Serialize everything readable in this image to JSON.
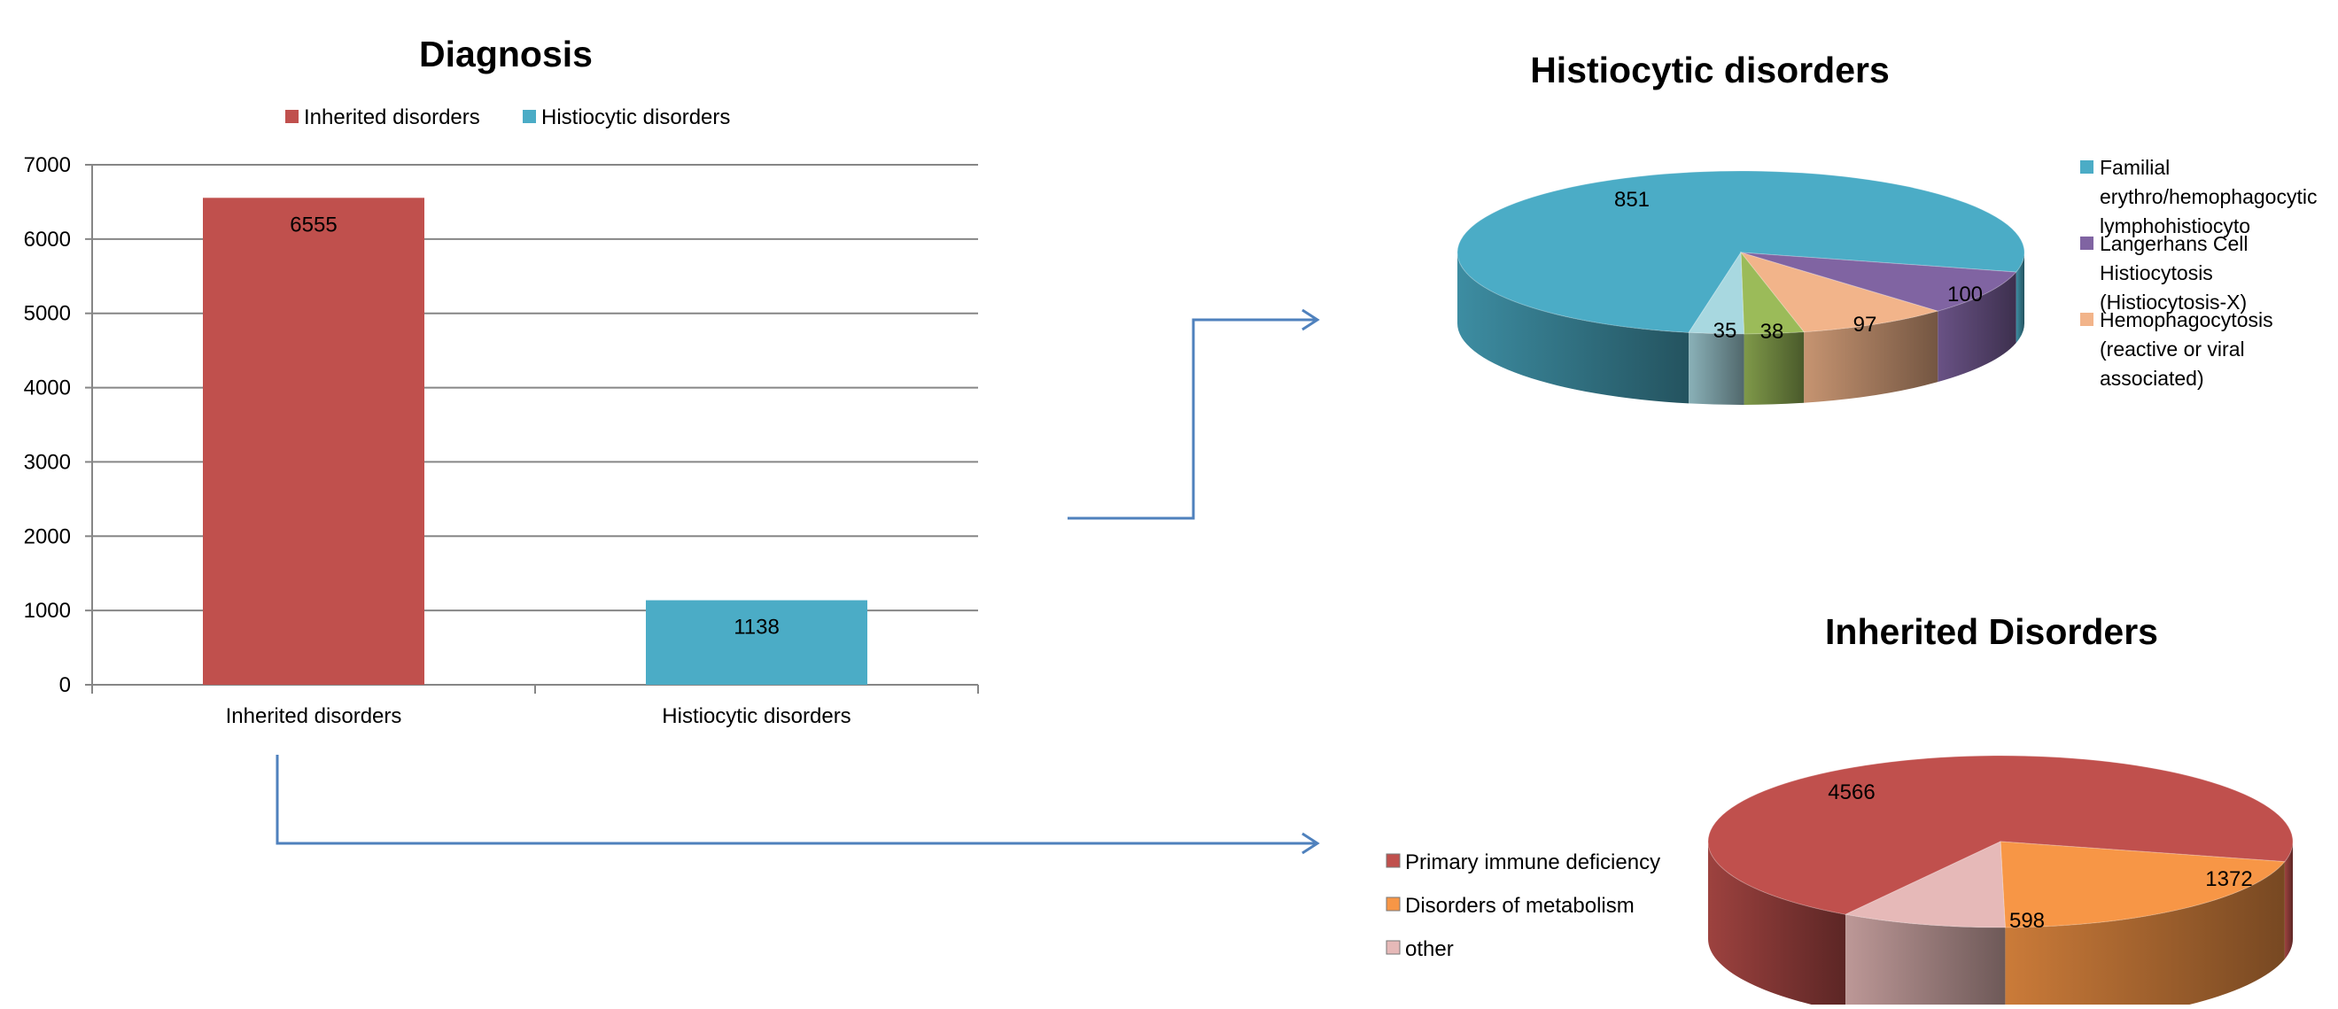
{
  "chart_data": [
    {
      "type": "bar",
      "title": "Diagnosis",
      "categories": [
        "Inherited disorders",
        "Histiocytic disorders"
      ],
      "values": [
        6555,
        1138
      ],
      "series": [
        {
          "name": "Inherited disorders",
          "color": "#C0504D"
        },
        {
          "name": "Histiocytic disorders",
          "color": "#4BACC6"
        }
      ],
      "yticks": [
        0,
        1000,
        2000,
        3000,
        4000,
        5000,
        6000,
        7000
      ],
      "ylim": [
        0,
        7000
      ],
      "grid": true,
      "legend": "top",
      "data_labels": true
    },
    {
      "type": "pie",
      "title": "Histiocytic disorders",
      "legend": "right",
      "slices": [
        {
          "label": "Familial erythro/hemophagocytic lymphohistiocyto",
          "value": 851,
          "color": "#4BACC6"
        },
        {
          "label": "Langerhans Cell Histiocytosis (Histiocytosis-X)",
          "value": 100,
          "color": "#8064A2"
        },
        {
          "label": "Hemophagocytosis (reactive or viral associated)",
          "value": 97,
          "color": "#F2B48A"
        },
        {
          "value": 38,
          "color": "#9BBB59"
        },
        {
          "value": 35,
          "color": "#A8D8E0"
        }
      ],
      "legend_lines": [
        [
          "Familial",
          "erythro/hemophagocytic",
          "lymphohistiocyto"
        ],
        [
          "Langerhans Cell",
          "Histiocytosis",
          "(Histiocytosis-X)"
        ],
        [
          "Hemophagocytosis",
          "(reactive or viral",
          "associated)"
        ]
      ]
    },
    {
      "type": "pie",
      "title": "Inherited Disorders",
      "legend": "left",
      "slices": [
        {
          "label": "Primary immune deficiency",
          "value": 4566,
          "color": "#C0504D"
        },
        {
          "label": "Disorders of metabolism",
          "value": 1372,
          "color": "#F79646"
        },
        {
          "label": "other",
          "value": 598,
          "color": "#E6B9B8"
        }
      ]
    }
  ],
  "colors": {
    "connector": "#4F81BD",
    "axis": "#868686",
    "grid": "#868686"
  }
}
